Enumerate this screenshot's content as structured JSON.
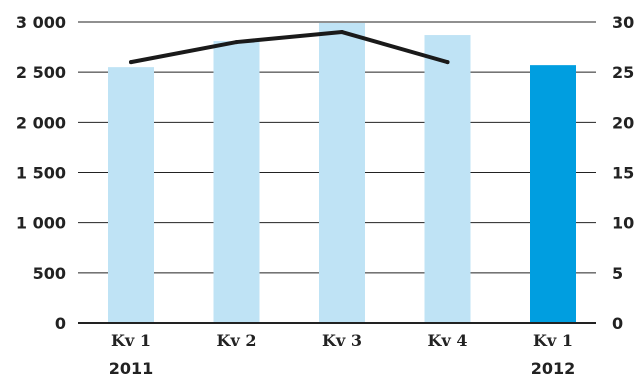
{
  "chart_data": {
    "type": "bar",
    "categories": [
      "Kv 1",
      "Kv 2",
      "Kv 3",
      "Kv 4",
      "Kv 1"
    ],
    "year_labels": [
      "2011",
      "",
      "",
      "",
      "2012"
    ],
    "series": [
      {
        "type": "bar",
        "axis": "left",
        "values": [
          2550,
          2810,
          2990,
          2870,
          2570
        ],
        "colors": [
          "#bfe3f5",
          "#bfe3f5",
          "#bfe3f5",
          "#bfe3f5",
          "#009ee0"
        ]
      },
      {
        "type": "line",
        "axis": "right",
        "values": [
          26,
          28,
          29,
          26,
          null
        ],
        "color": "#1a1a1a"
      }
    ],
    "left_axis": {
      "ylim": [
        0,
        3000
      ],
      "ticks": [
        "0",
        "500",
        "1 000",
        "1 500",
        "2 000",
        "2 500",
        "3 000"
      ],
      "tick_values": [
        0,
        500,
        1000,
        1500,
        2000,
        2500,
        3000
      ]
    },
    "right_axis": {
      "ylim": [
        0,
        30
      ],
      "ticks": [
        "0",
        "5",
        "10",
        "15",
        "20",
        "25",
        "30"
      ],
      "tick_values": [
        0,
        5,
        10,
        15,
        20,
        25,
        30
      ]
    },
    "grid": true,
    "title": "",
    "xlabel": "",
    "ylabel": ""
  }
}
